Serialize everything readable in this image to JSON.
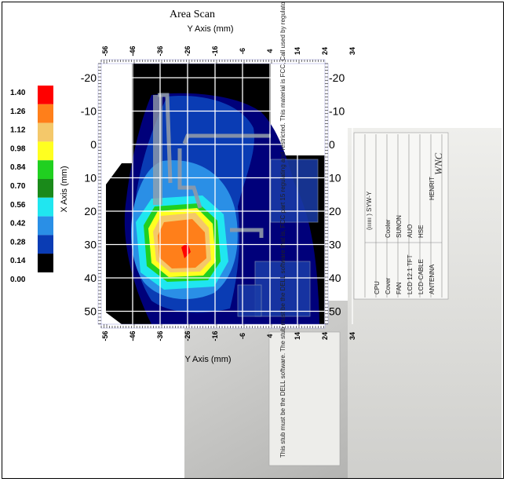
{
  "chart_data": {
    "type": "heatmap",
    "title": "Area Scan",
    "xlabel": "Y Axis (mm)",
    "ylabel": "X Axis (mm)",
    "x_ticks": [
      -56,
      -46,
      -36,
      -26,
      -16,
      -6,
      4,
      14,
      24,
      34
    ],
    "y_ticks": [
      -20,
      -10,
      0,
      10,
      20,
      30,
      40,
      50
    ],
    "xlim": [
      -56,
      34
    ],
    "ylim": [
      -25,
      55
    ],
    "colorbar": {
      "levels": [
        "1.40",
        "1.26",
        "1.12",
        "0.98",
        "0.84",
        "0.70",
        "0.56",
        "0.42",
        "0.28",
        "0.14",
        "0.00"
      ],
      "colors": [
        "#ff0000",
        "#ff7f1a",
        "#f4c86a",
        "#ffff20",
        "#20d020",
        "#1a8a1a",
        "#20e6f0",
        "#2a8fe6",
        "#0a3cb4",
        "#00007a",
        "#000000"
      ]
    },
    "peak": {
      "x": -26,
      "y": 30
    }
  },
  "photo_labels": {
    "bars": "(ıııııı ) SYW-Y",
    "rows": [
      "CPU",
      "Cover",
      "FAN",
      "LCD 12.1 TFT",
      "LCD-CABLE",
      "ANTENNA"
    ],
    "vendors": [
      "Cooler",
      "SUNON",
      "AUO",
      "HSE",
      "HENRIT"
    ],
    "brand": "WNC",
    "sticker": "This stub must be the DELL software. The stub must be the DELL software that is, FCC part 15 regulating and restricted. This material is FCC, Call used by regulatory approval in DELL for purposes..."
  }
}
